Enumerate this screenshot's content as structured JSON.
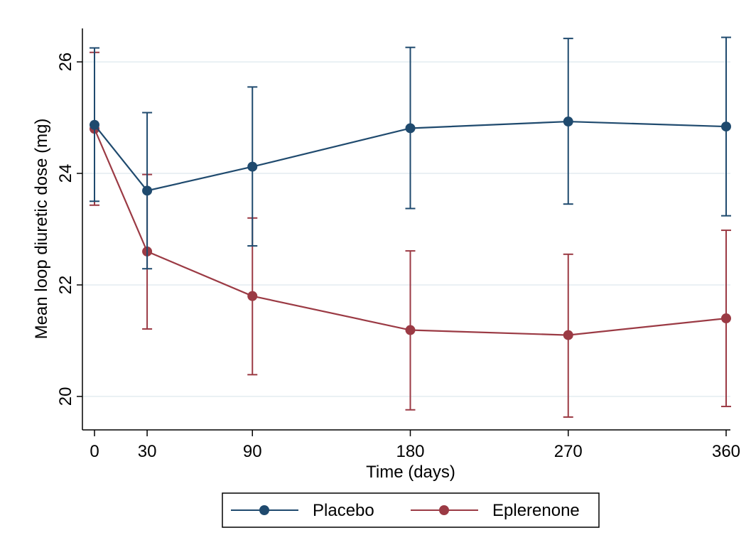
{
  "colors": {
    "placebo": "#1f4a6e",
    "eplerenone": "#9b3a44",
    "grid": "#e3ecf1"
  },
  "chart_data": {
    "type": "line",
    "xlabel": "Time (days)",
    "ylabel": "Mean loop diuretic dose (mg)",
    "x": [
      0,
      30,
      90,
      180,
      270,
      360
    ],
    "xticks": [
      "0",
      "30",
      "90",
      "180",
      "270",
      "360"
    ],
    "xlim": [
      0,
      360
    ],
    "yticks": [
      "20",
      "22",
      "24",
      "26"
    ],
    "ylim": [
      19.4,
      26.6
    ],
    "grid": true,
    "legend_position": "bottom",
    "error_bars": true,
    "series": [
      {
        "name": "Placebo",
        "color": "#1f4a6e",
        "values": [
          24.87,
          23.69,
          24.12,
          24.81,
          24.93,
          24.84
        ],
        "lower": [
          23.5,
          22.29,
          22.7,
          23.37,
          23.45,
          23.24
        ],
        "upper": [
          26.25,
          25.09,
          25.55,
          26.26,
          26.42,
          26.44
        ]
      },
      {
        "name": "Eplerenone",
        "color": "#9b3a44",
        "values": [
          24.8,
          22.6,
          21.8,
          21.19,
          21.1,
          21.4
        ],
        "lower": [
          23.43,
          21.21,
          20.39,
          19.76,
          19.63,
          19.82
        ],
        "upper": [
          26.17,
          23.98,
          23.2,
          22.61,
          22.55,
          22.98
        ]
      }
    ]
  }
}
